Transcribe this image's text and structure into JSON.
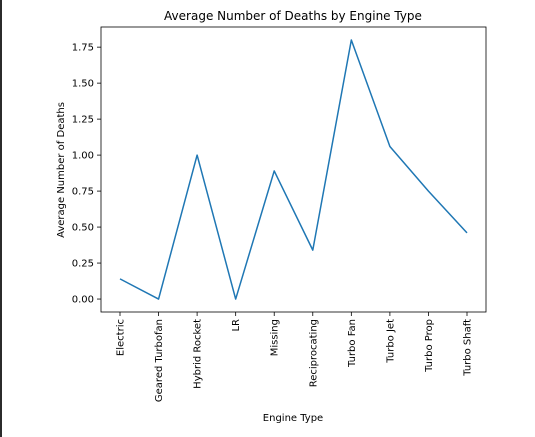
{
  "chart_data": {
    "type": "line",
    "title": "Average Number of Deaths by Engine Type",
    "xlabel": "Engine Type",
    "ylabel": "Average Number of Deaths",
    "categories": [
      "Electric",
      "Geared Turbofan",
      "Hybrid Rocket",
      "LR",
      "Missing",
      "Reciprocating",
      "Turbo Fan",
      "Turbo Jet",
      "Turbo Prop",
      "Turbo Shaft"
    ],
    "values": [
      0.14,
      0.0,
      1.0,
      0.0,
      0.89,
      0.34,
      1.8,
      1.06,
      0.75,
      0.46
    ],
    "yticks": [
      "0.00",
      "0.25",
      "0.50",
      "0.75",
      "1.00",
      "1.25",
      "1.50",
      "1.75"
    ],
    "ylim": [
      -0.09,
      1.89
    ],
    "grid": false,
    "line_color": "#1f77b4"
  }
}
